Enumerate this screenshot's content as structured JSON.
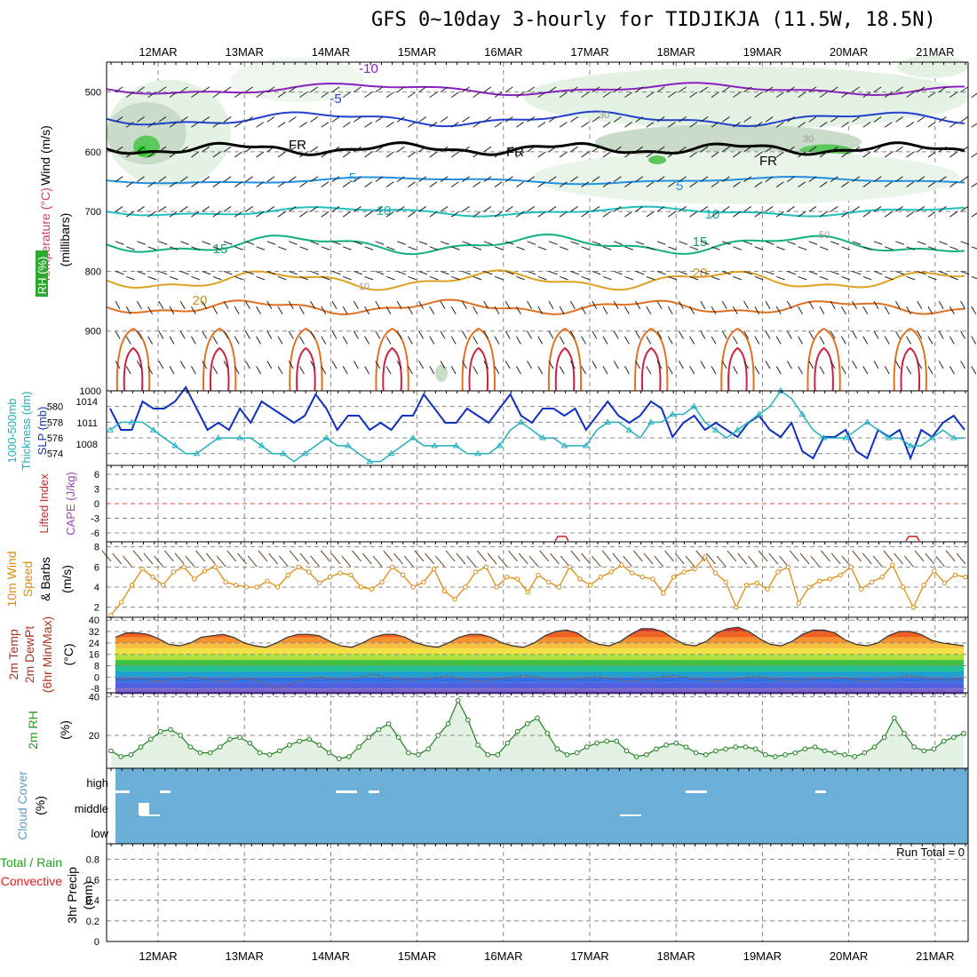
{
  "title": "GFS 0~10day 3-hourly for TIDJIKJA (11.5W, 18.5N)",
  "dates": [
    "12MAR",
    "13MAR",
    "14MAR",
    "15MAR",
    "16MAR",
    "17MAR",
    "18MAR",
    "19MAR",
    "20MAR",
    "21MAR"
  ],
  "colors": {
    "wind_speed": "#e08a10",
    "slp": "#1030c0",
    "thickness": "#20b0c0",
    "lifted_index": "#d02020",
    "cape": "#a040c0",
    "rh": "#208020",
    "rh_fill": "#e4f2e4",
    "cloud": "#6baed6",
    "precip_total": "#20a020",
    "precip_conv": "#e02020"
  },
  "panels": {
    "upper": {
      "labels": {
        "wind": "Wind (m/s)",
        "temp": "Temperature (°C)",
        "rh": "RH (%)",
        "units": "(millibars)"
      },
      "yticks": [
        500,
        600,
        700,
        800,
        900,
        1000
      ],
      "contour_labels": [
        "-10",
        "-5",
        "FR",
        "FR",
        "FR",
        "5",
        "5",
        "10",
        "10",
        "15",
        "15",
        "20",
        "20",
        "30",
        "30",
        "50",
        "10"
      ]
    },
    "thickness": {
      "labels": {
        "thk": "1000-500mb",
        "thk2": "Thickness (dm)",
        "slp": "SLP (mb)"
      },
      "yticks_thk": [
        580,
        578,
        576,
        574
      ],
      "yticks_slp": [
        1014,
        1011,
        1008
      ]
    },
    "stability": {
      "labels": {
        "li": "Lifted Index",
        "cape": "CAPE (J/kg)"
      },
      "yticks": [
        "6",
        "3",
        "0",
        "-3",
        "-6"
      ]
    },
    "wind10": {
      "labels": {
        "a": "10m Wind",
        "b": "Speed",
        "c": "& Barbs",
        "units": "(m/s)"
      },
      "yticks": [
        8,
        6,
        4,
        2
      ]
    },
    "temp2m": {
      "labels": {
        "a": "2m Temp",
        "b": "2m DewPt",
        "c": "(6hr Min/Max)",
        "units": "(°C)"
      },
      "yticks": [
        "40",
        "32",
        "24",
        "16",
        "8",
        "0",
        "-8"
      ]
    },
    "rh2m": {
      "labels": {
        "a": "2m RH",
        "units": "(%)"
      },
      "yticks": [
        40,
        20
      ]
    },
    "cloud": {
      "labels": {
        "a": "Cloud Cover",
        "units": "(%)"
      },
      "levels": [
        "high",
        "middle",
        "low"
      ]
    },
    "precip": {
      "labels": {
        "a": "Total / Rain",
        "b": "Convective",
        "c": "3hr Precip",
        "units": "(mm)"
      },
      "yticks": [
        "0.8",
        "0.6",
        "0.4",
        "0.2",
        "0"
      ],
      "run_total": "Run Total = 0"
    }
  },
  "chart_data": [
    {
      "type": "line",
      "title": "",
      "series": [
        {
          "name": "SLP",
          "unit": "mb",
          "values": [
            1013,
            1010,
            1010,
            1014,
            1013,
            1013,
            1014,
            1016,
            1013,
            1010,
            1011,
            1010,
            1013,
            1011,
            1014,
            1013,
            1012,
            1011,
            1012,
            1015,
            1013,
            1010,
            1012,
            1012,
            1010,
            1011,
            1010,
            1012,
            1012,
            1015,
            1013,
            1011,
            1011,
            1013,
            1012,
            1011,
            1013,
            1015,
            1012,
            1011,
            1013,
            1013,
            1012,
            1013,
            1010,
            1012,
            1014,
            1012,
            1011,
            1012,
            1014,
            1013,
            1009,
            1011,
            1012,
            1010,
            1011,
            1010,
            1009,
            1011,
            1012,
            1010,
            1009,
            1011,
            1007,
            1006,
            1009,
            1009,
            1010,
            1007,
            1006,
            1010,
            1009,
            1010,
            1006,
            1010,
            1009,
            1011,
            1012,
            1010
          ]
        },
        {
          "name": "1000-500mb Thickness",
          "unit": "dm",
          "values": [
            577,
            578,
            578,
            578,
            577,
            576,
            575,
            574,
            574,
            575,
            576,
            576,
            576,
            576,
            575,
            574,
            574,
            573,
            574,
            575,
            576,
            575,
            575,
            574,
            573,
            573,
            574,
            575,
            576,
            575,
            575,
            575,
            575,
            574,
            574,
            574,
            575,
            577,
            578,
            577,
            576,
            576,
            575,
            575,
            575,
            577,
            578,
            578,
            577,
            576,
            578,
            578,
            579,
            579,
            580,
            578,
            577,
            576,
            577,
            578,
            579,
            580,
            582,
            581,
            579,
            577,
            576,
            576,
            576,
            577,
            578,
            577,
            576,
            576,
            575,
            575,
            576,
            577,
            576,
            576
          ]
        }
      ]
    },
    {
      "type": "line",
      "title": "",
      "ylabel": "10m Wind Speed & Barbs (m/s)",
      "ylim": [
        1,
        8
      ],
      "series": [
        {
          "name": "10m Wind Speed",
          "values": [
            1.2,
            2.5,
            4.2,
            5.8,
            5.0,
            4.2,
            5.5,
            6.0,
            4.8,
            5.6,
            6.0,
            4.5,
            4.2,
            4.0,
            4.0,
            4.6,
            4.0,
            5.2,
            6.0,
            5.5,
            4.4,
            5.0,
            5.4,
            5.2,
            4.0,
            3.8,
            4.5,
            6.0,
            5.2,
            4.0,
            4.5,
            5.8,
            3.6,
            2.8,
            4.0,
            5.5,
            6.0,
            4.0,
            5.0,
            4.8,
            3.5,
            5.2,
            4.5,
            4.0,
            6.0,
            4.8,
            4.2,
            5.0,
            5.5,
            6.2,
            5.4,
            5.0,
            4.8,
            3.4,
            5.0,
            5.5,
            5.8,
            7.0,
            5.4,
            4.5,
            2.0,
            4.2,
            4.4,
            3.8,
            5.5,
            6.0,
            2.4,
            4.0,
            4.6,
            4.8,
            5.2,
            6.0,
            3.8,
            4.5,
            5.0,
            6.2,
            4.0,
            2.0,
            4.2,
            5.6,
            4.4,
            5.2,
            5.0
          ]
        }
      ]
    },
    {
      "type": "area",
      "title": "",
      "ylabel": "2m Temp / 2m DewPt (°C)",
      "ylim": [
        -10,
        40
      ],
      "series": [
        {
          "name": "2m Temp",
          "values": [
            28,
            31,
            31,
            30,
            27,
            23,
            22,
            24,
            28,
            29,
            30,
            28,
            24,
            22,
            21,
            24,
            28,
            30,
            30,
            29,
            25,
            22,
            21,
            24,
            28,
            30,
            30,
            28,
            24,
            22,
            21,
            24,
            28,
            30,
            30,
            28,
            24,
            22,
            21,
            24,
            29,
            32,
            33,
            31,
            26,
            23,
            22,
            25,
            30,
            34,
            34,
            32,
            27,
            23,
            22,
            25,
            31,
            34,
            35,
            32,
            27,
            23,
            22,
            25,
            30,
            33,
            33,
            31,
            26,
            23,
            22,
            24,
            29,
            32,
            32,
            30,
            26,
            24,
            23,
            22
          ]
        },
        {
          "name": "2m DewPt",
          "values": [
            -2,
            -1,
            -1,
            -2,
            -3,
            -2,
            -1,
            0,
            -1,
            -2,
            -3,
            -2,
            -1,
            -2,
            -5,
            -8,
            -6,
            -3,
            -1,
            0,
            -1,
            -2,
            -1,
            0,
            2,
            0,
            -1,
            -2,
            -2,
            -1,
            0,
            1,
            -1,
            -2,
            -3,
            -2,
            -1,
            0,
            1,
            0,
            -1,
            -2,
            -2,
            -1,
            0,
            0,
            -1,
            -2,
            -3,
            -2,
            -1,
            0,
            1,
            0,
            -1,
            -2,
            -3,
            -2,
            -1,
            0,
            0,
            -1,
            -2,
            -3,
            -2,
            -1,
            -1,
            0,
            -1,
            -2,
            -3,
            -2,
            -1,
            0,
            1,
            0,
            -1,
            -2,
            -2,
            -1
          ]
        }
      ]
    },
    {
      "type": "area",
      "title": "",
      "ylabel": "2m RH (%)",
      "ylim": [
        0,
        40
      ],
      "series": [
        {
          "name": "2m RH",
          "values": [
            12,
            9,
            10,
            14,
            18,
            22,
            23,
            20,
            14,
            11,
            11,
            14,
            18,
            19,
            16,
            11,
            10,
            12,
            15,
            17,
            18,
            15,
            11,
            8,
            9,
            14,
            19,
            23,
            26,
            19,
            11,
            10,
            13,
            20,
            26,
            38,
            28,
            15,
            10,
            10,
            16,
            22,
            26,
            29,
            21,
            13,
            10,
            11,
            14,
            16,
            17,
            17,
            12,
            9,
            10,
            13,
            15,
            16,
            14,
            11,
            10,
            12,
            13,
            14,
            14,
            13,
            10,
            9,
            10,
            11,
            13,
            14,
            12,
            11,
            10,
            9,
            11,
            14,
            19,
            29,
            21,
            14,
            12,
            13,
            17,
            19,
            21
          ]
        }
      ]
    },
    {
      "type": "bar",
      "title": "",
      "ylabel": "3hr Precip (mm)",
      "ylim": [
        0,
        0.9
      ],
      "series": [
        {
          "name": "Total / Rain",
          "values": []
        },
        {
          "name": "Convective",
          "values": []
        }
      ]
    }
  ]
}
